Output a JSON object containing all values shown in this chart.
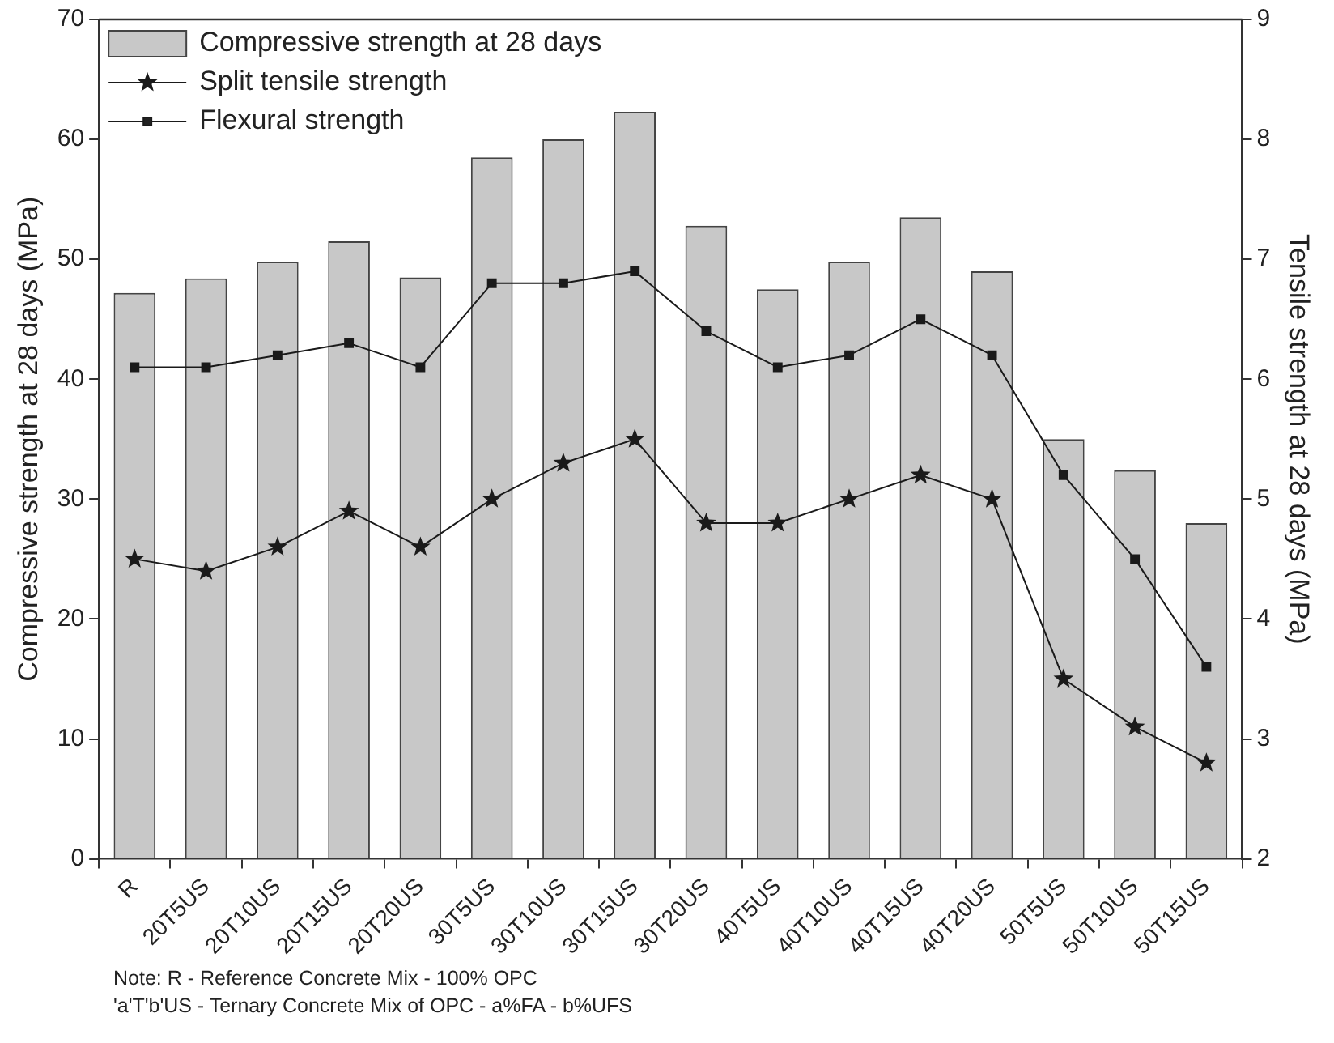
{
  "chart_data": {
    "type": "bar",
    "categories": [
      "R",
      "20T5US",
      "20T10US",
      "20T15US",
      "20T20US",
      "30T5US",
      "30T10US",
      "30T15US",
      "30T20US",
      "40T5US",
      "40T10US",
      "40T15US",
      "40T20US",
      "50T5US",
      "50T10US",
      "50T15US"
    ],
    "series": [
      {
        "name": "Compressive strength at 28 days",
        "color": "#c8c8c8",
        "values": [
          47.2,
          48.4,
          49.8,
          51.5,
          48.5,
          58.5,
          60,
          62.3,
          52.8,
          47.5,
          49.8,
          53.5,
          49,
          35,
          32.4,
          28
        ]
      },
      {
        "name": "Split tensile strength",
        "type": "line",
        "axis": "y2",
        "marker": "star",
        "color": "#1a1a1a",
        "values": [
          4.5,
          4.4,
          4.6,
          4.9,
          4.6,
          5.0,
          5.3,
          5.5,
          4.8,
          4.8,
          5.0,
          5.2,
          5.0,
          3.5,
          3.1,
          2.8
        ]
      },
      {
        "name": "Flexural strength",
        "type": "line",
        "axis": "y2",
        "marker": "square",
        "color": "#1a1a1a",
        "values": [
          6.1,
          6.1,
          6.2,
          6.3,
          6.1,
          6.8,
          6.8,
          6.9,
          6.4,
          6.1,
          6.2,
          6.5,
          6.2,
          5.2,
          4.5,
          3.6
        ]
      }
    ],
    "ylabel": "Compressive strength at 28 days (MPa)",
    "y2label": "Tensile strength at 28 days (MPa)",
    "ylim": [
      0,
      70
    ],
    "yticks": [
      0,
      10,
      20,
      30,
      40,
      50,
      60,
      70
    ],
    "y2lim": [
      2,
      9
    ],
    "y2ticks": [
      2,
      3,
      4,
      5,
      6,
      7,
      8,
      9
    ],
    "legend": "top left",
    "grid": false,
    "annotations": [
      "Note:  R - Reference Concrete Mix - 100% OPC",
      "'a'T'b'US - Ternary Concrete Mix of OPC - a%FA - b%UFS"
    ]
  }
}
